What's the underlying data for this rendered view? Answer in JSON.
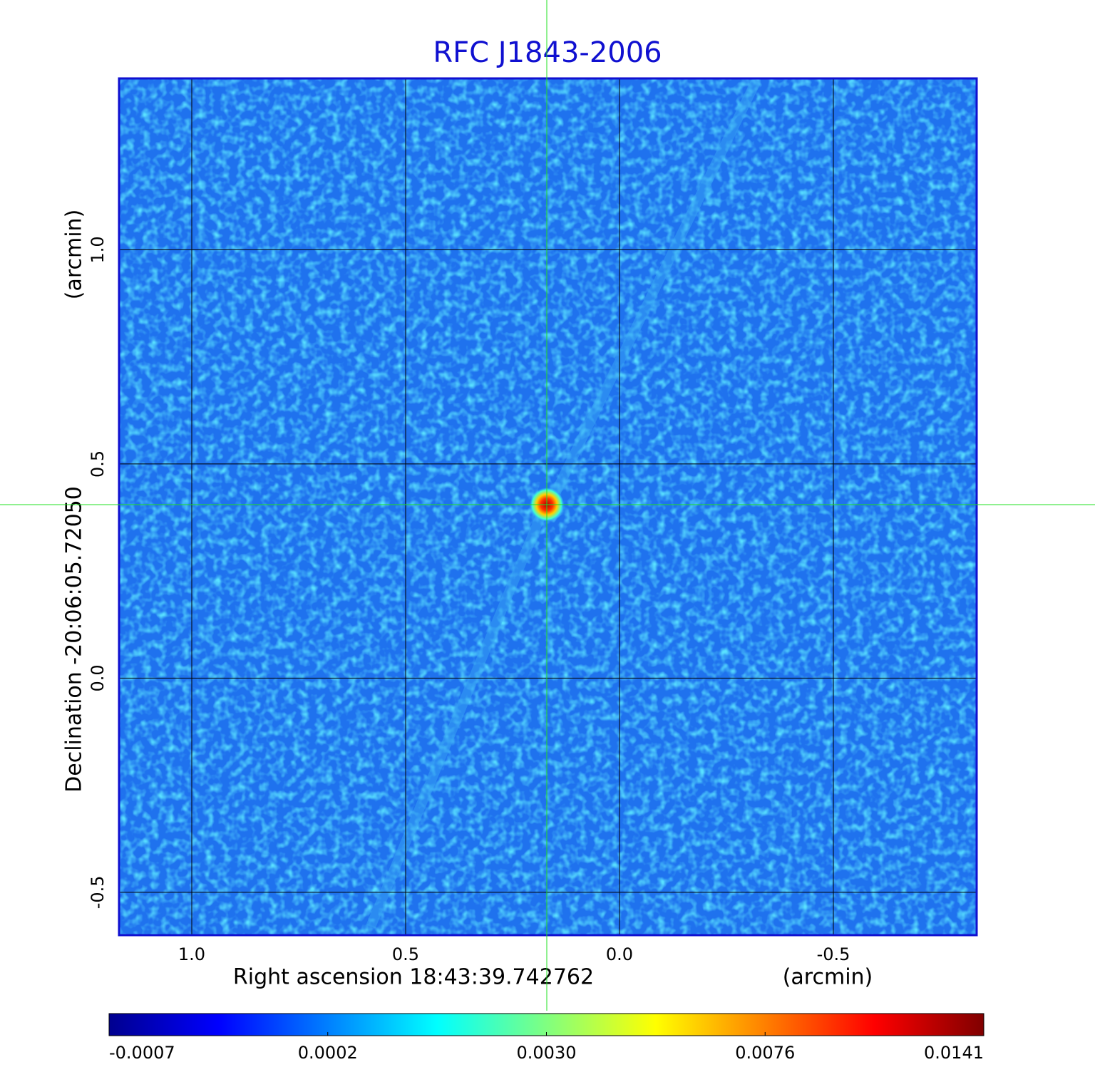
{
  "chart_data": {
    "type": "image",
    "title": "RFC J1843-2006",
    "x_label": "Right ascension  18:43:39.742762",
    "x_unit": "(arcmin)",
    "y_label": "Declination  -20:06:05.72050",
    "y_unit": "(arcmin)",
    "xlim": [
      1.17,
      -0.835
    ],
    "ylim": [
      -0.6,
      1.4
    ],
    "xticks": [
      {
        "value": 1.0,
        "label": "1.0"
      },
      0.5,
      {
        "value": 0.0,
        "label": "0.0"
      },
      -0.5
    ],
    "yticks": [
      {
        "value": 1.0,
        "label": "1.0"
      },
      0.5,
      {
        "value": 0.0,
        "label": "0.0"
      },
      -0.5
    ],
    "grid": true,
    "crosshair": {
      "x": 0.17,
      "y": 0.405
    },
    "colormap": "jet",
    "colorbar_ticks": [
      -0.0007,
      0.0002,
      {
        "value": 0.003,
        "label": "0.0030"
      },
      0.0076,
      0.0141
    ]
  }
}
